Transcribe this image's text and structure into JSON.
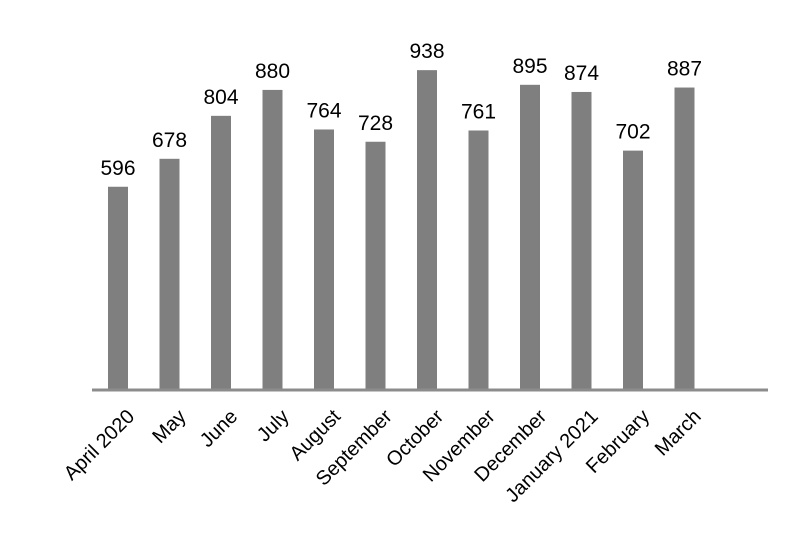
{
  "chart_data": {
    "type": "bar",
    "categories": [
      "April 2020",
      "May",
      "June",
      "July",
      "August",
      "September",
      "October",
      "November",
      "December",
      "January 2021",
      "February",
      "March"
    ],
    "values": [
      596,
      678,
      804,
      880,
      764,
      728,
      938,
      761,
      895,
      874,
      702,
      887
    ],
    "title": "",
    "xlabel": "",
    "ylabel": "",
    "ylim": [
      0,
      1000
    ],
    "grid": false,
    "legend": "none",
    "bar_color": "#7f7f7f",
    "axis_color": "#8c8c8c"
  }
}
